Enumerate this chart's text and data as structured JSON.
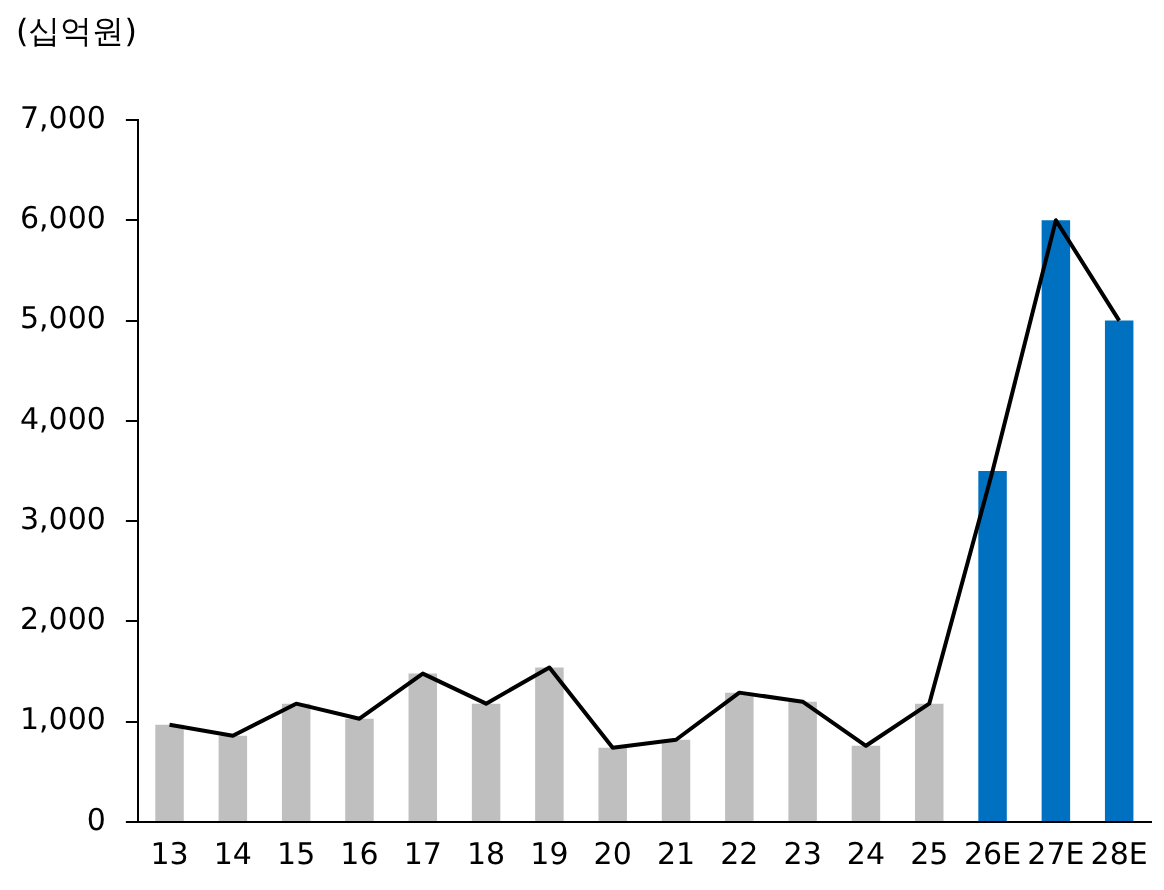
{
  "chart_data": {
    "type": "bar",
    "ylabel": "(십억원)",
    "categories": [
      "13",
      "14",
      "15",
      "16",
      "17",
      "18",
      "19",
      "20",
      "21",
      "22",
      "23",
      "24",
      "25",
      "26E",
      "27E",
      "28E"
    ],
    "series": [
      {
        "colors": [
          "#bfbfbf",
          "#bfbfbf",
          "#bfbfbf",
          "#bfbfbf",
          "#bfbfbf",
          "#bfbfbf",
          "#bfbfbf",
          "#bfbfbf",
          "#bfbfbf",
          "#bfbfbf",
          "#bfbfbf",
          "#bfbfbf",
          "#bfbfbf",
          "#0070c0",
          "#0070c0",
          "#0070c0"
        ],
        "values": [
          970,
          860,
          1180,
          1030,
          1480,
          1180,
          1540,
          740,
          820,
          1290,
          1200,
          760,
          1180,
          3500,
          6000,
          5000
        ]
      },
      {
        "type": "line",
        "color": "#000000",
        "values": [
          970,
          860,
          1180,
          1030,
          1480,
          1180,
          1540,
          740,
          820,
          1290,
          1200,
          760,
          1180,
          3500,
          6000,
          5000
        ]
      }
    ],
    "ylim": [
      0,
      7000
    ],
    "yticks": [
      0,
      {
        "value": 1000,
        "label": "1,000"
      },
      {
        "value": 2000,
        "label": "2,000"
      },
      {
        "value": 3000,
        "label": "3,000"
      },
      {
        "value": 4000,
        "label": "4,000"
      },
      {
        "value": 5000,
        "label": "5,000"
      },
      {
        "value": 6000,
        "label": "6,000"
      },
      {
        "value": 7000,
        "label": "7,000"
      }
    ],
    "grid": false,
    "legend": false,
    "marker": "none"
  }
}
